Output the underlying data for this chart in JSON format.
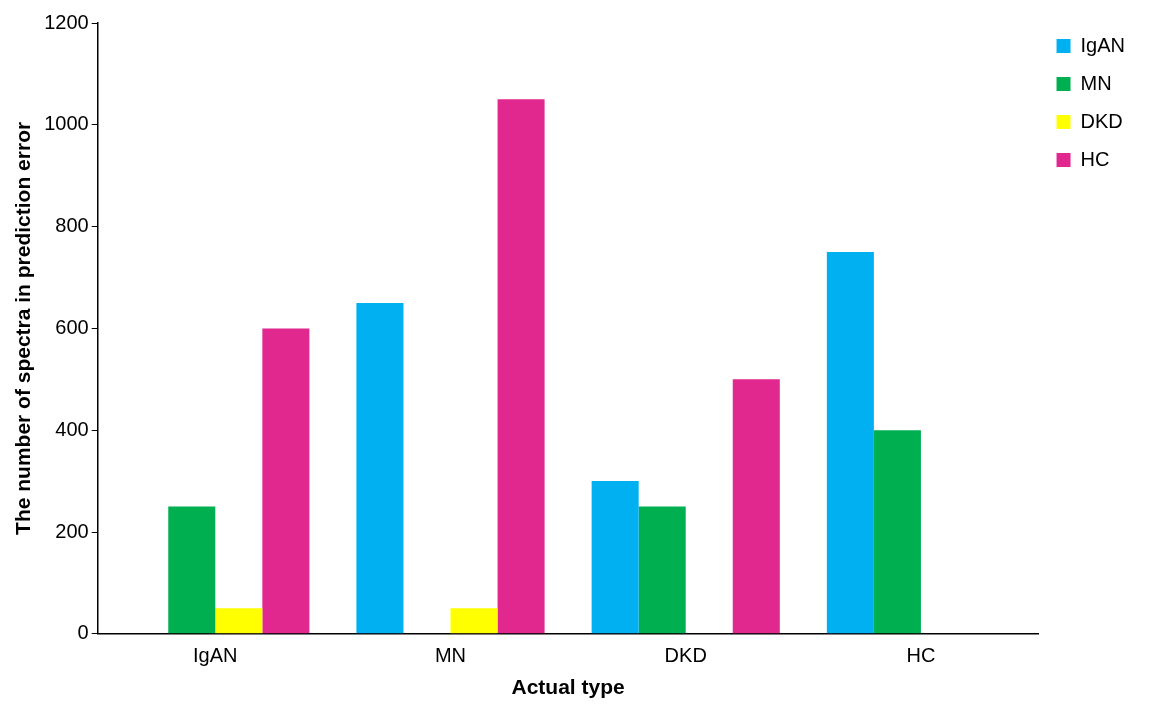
{
  "chart_data": {
    "type": "bar",
    "xlabel": "Actual type",
    "ylabel": "The number of spectra in prediction error",
    "categories": [
      "IgAN",
      "MN",
      "DKD",
      "HC"
    ],
    "series": [
      {
        "name": "IgAN",
        "color": "#00b0f0",
        "values": [
          0,
          650,
          300,
          750
        ]
      },
      {
        "name": "MN",
        "color": "#00b050",
        "values": [
          250,
          0,
          250,
          400
        ]
      },
      {
        "name": "DKD",
        "color": "#ffff00",
        "values": [
          50,
          50,
          0,
          0
        ]
      },
      {
        "name": "HC",
        "color": "#e0288f",
        "values": [
          600,
          1050,
          500,
          0
        ]
      }
    ],
    "ylim": [
      0,
      1200
    ],
    "yticks": [
      0,
      200,
      400,
      600,
      800,
      1000,
      1200
    ],
    "grid": false,
    "legend": "top right"
  }
}
